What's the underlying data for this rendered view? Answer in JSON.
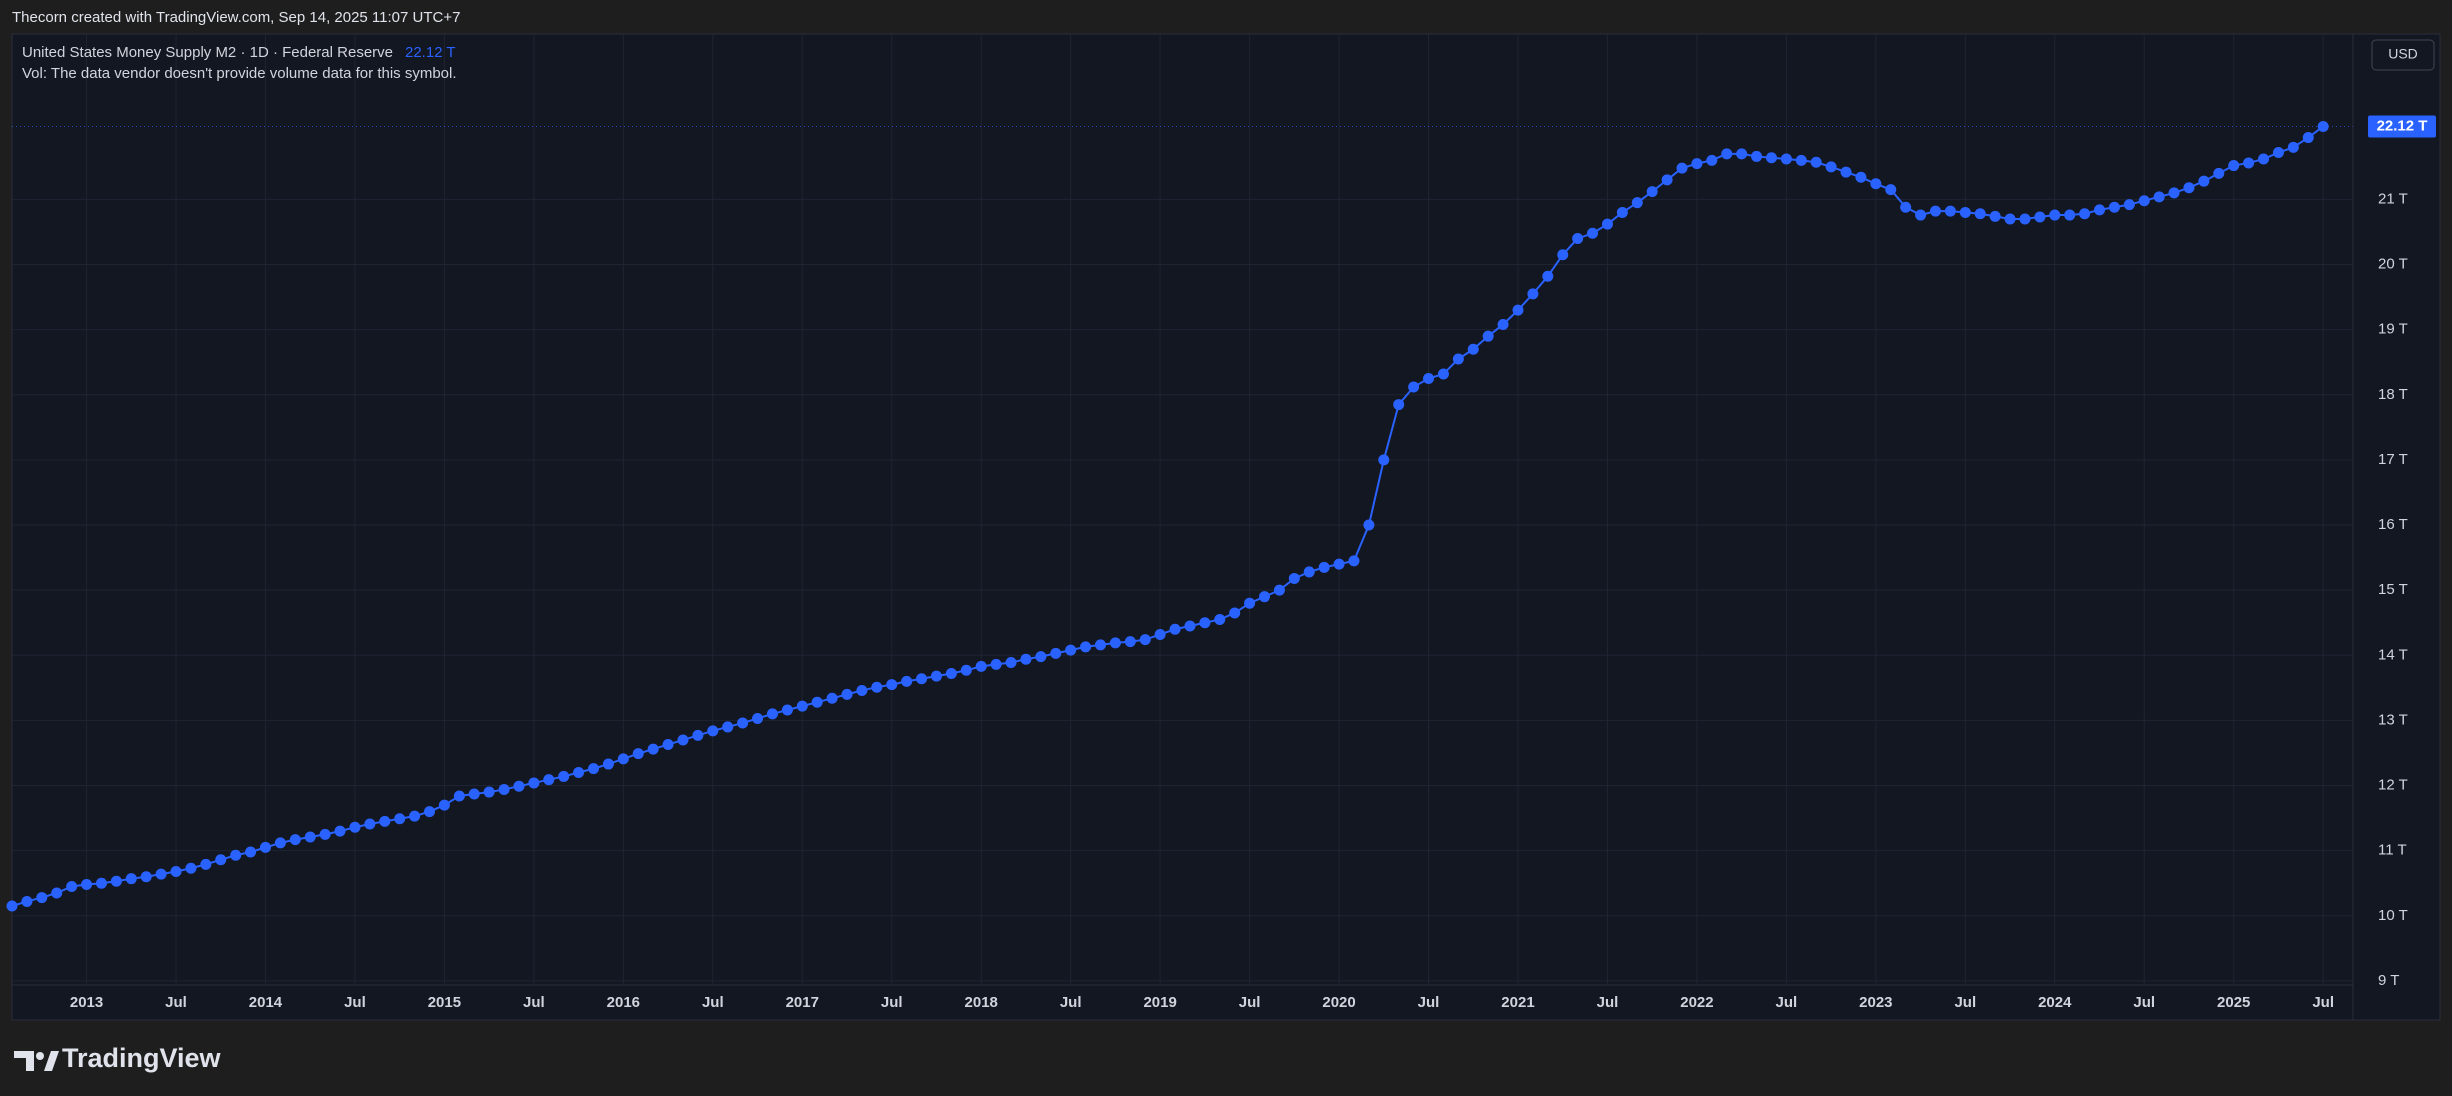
{
  "header": "Thecorn created with TradingView.com, Sep 14, 2025 11:07 UTC+7",
  "volume_note": "Vol: The data vendor doesn't provide volume data for this symbol.",
  "currency_button": "USD",
  "brand": "TradingView",
  "chart_data": {
    "type": "line",
    "last_label": "22.12 T",
    "x": [
      "2012-08",
      "2012-09",
      "2012-10",
      "2012-11",
      "2012-12",
      "2013-01",
      "2013-02",
      "2013-03",
      "2013-04",
      "2013-05",
      "2013-06",
      "2013-07",
      "2013-08",
      "2013-09",
      "2013-10",
      "2013-11",
      "2013-12",
      "2014-01",
      "2014-02",
      "2014-03",
      "2014-04",
      "2014-05",
      "2014-06",
      "2014-07",
      "2014-08",
      "2014-09",
      "2014-10",
      "2014-11",
      "2014-12",
      "2015-01",
      "2015-02",
      "2015-03",
      "2015-04",
      "2015-05",
      "2015-06",
      "2015-07",
      "2015-08",
      "2015-09",
      "2015-10",
      "2015-11",
      "2015-12",
      "2016-01",
      "2016-02",
      "2016-03",
      "2016-04",
      "2016-05",
      "2016-06",
      "2016-07",
      "2016-08",
      "2016-09",
      "2016-10",
      "2016-11",
      "2016-12",
      "2017-01",
      "2017-02",
      "2017-03",
      "2017-04",
      "2017-05",
      "2017-06",
      "2017-07",
      "2017-08",
      "2017-09",
      "2017-10",
      "2017-11",
      "2017-12",
      "2018-01",
      "2018-02",
      "2018-03",
      "2018-04",
      "2018-05",
      "2018-06",
      "2018-07",
      "2018-08",
      "2018-09",
      "2018-10",
      "2018-11",
      "2018-12",
      "2019-01",
      "2019-02",
      "2019-03",
      "2019-04",
      "2019-05",
      "2019-06",
      "2019-07",
      "2019-08",
      "2019-09",
      "2019-10",
      "2019-11",
      "2019-12",
      "2020-01",
      "2020-02",
      "2020-03",
      "2020-04",
      "2020-05",
      "2020-06",
      "2020-07",
      "2020-08",
      "2020-09",
      "2020-10",
      "2020-11",
      "2020-12",
      "2021-01",
      "2021-02",
      "2021-03",
      "2021-04",
      "2021-05",
      "2021-06",
      "2021-07",
      "2021-08",
      "2021-09",
      "2021-10",
      "2021-11",
      "2021-12",
      "2022-01",
      "2022-02",
      "2022-03",
      "2022-04",
      "2022-05",
      "2022-06",
      "2022-07",
      "2022-08",
      "2022-09",
      "2022-10",
      "2022-11",
      "2022-12",
      "2023-01",
      "2023-02",
      "2023-03",
      "2023-04",
      "2023-05",
      "2023-06",
      "2023-07",
      "2023-08",
      "2023-09",
      "2023-10",
      "2023-11",
      "2023-12",
      "2024-01",
      "2024-02",
      "2024-03",
      "2024-04",
      "2024-05",
      "2024-06",
      "2024-07",
      "2024-08",
      "2024-09",
      "2024-10",
      "2024-11",
      "2024-12",
      "2025-01",
      "2025-02",
      "2025-03",
      "2025-04",
      "2025-05",
      "2025-06",
      "2025-07"
    ],
    "series": [
      {
        "name": "United States Money Supply M2 · 1D · Federal Reserve",
        "color": "#2962ff",
        "values": [
          10.15,
          10.22,
          10.28,
          10.35,
          10.45,
          10.48,
          10.5,
          10.53,
          10.57,
          10.6,
          10.64,
          10.68,
          10.73,
          10.79,
          10.86,
          10.93,
          10.98,
          11.05,
          11.12,
          11.17,
          11.21,
          11.25,
          11.3,
          11.36,
          11.41,
          11.45,
          11.49,
          11.53,
          11.6,
          11.7,
          11.84,
          11.87,
          11.9,
          11.94,
          11.99,
          12.04,
          12.09,
          12.14,
          12.2,
          12.26,
          12.33,
          12.41,
          12.49,
          12.56,
          12.63,
          12.7,
          12.77,
          12.84,
          12.9,
          12.96,
          13.03,
          13.1,
          13.16,
          13.22,
          13.28,
          13.34,
          13.4,
          13.46,
          13.51,
          13.55,
          13.6,
          13.64,
          13.68,
          13.72,
          13.77,
          13.83,
          13.86,
          13.89,
          13.94,
          13.98,
          14.03,
          14.08,
          14.13,
          14.16,
          14.19,
          14.21,
          14.24,
          14.32,
          14.4,
          14.45,
          14.5,
          14.55,
          14.65,
          14.8,
          14.9,
          15.0,
          15.18,
          15.28,
          15.35,
          15.4,
          15.45,
          16.0,
          17.0,
          17.85,
          18.12,
          18.25,
          18.32,
          18.55,
          18.7,
          18.9,
          19.08,
          19.3,
          19.55,
          19.82,
          20.15,
          20.4,
          20.48,
          20.62,
          20.8,
          20.95,
          21.12,
          21.3,
          21.48,
          21.55,
          21.6,
          21.7,
          21.7,
          21.66,
          21.64,
          21.62,
          21.6,
          21.57,
          21.5,
          21.42,
          21.34,
          21.24,
          21.15,
          20.88,
          20.76,
          20.82,
          20.82,
          20.8,
          20.78,
          20.74,
          20.7,
          20.7,
          20.73,
          20.76,
          20.76,
          20.78,
          20.84,
          20.88,
          20.92,
          20.98,
          21.04,
          21.1,
          21.18,
          21.28,
          21.4,
          21.52,
          21.56,
          21.62,
          21.72,
          21.8,
          21.95,
          22.12
        ]
      }
    ],
    "xlim": [
      "2012-08",
      "2025-09"
    ],
    "xticks": [
      {
        "value": "2013-01",
        "label": "2013"
      },
      {
        "value": "2013-07",
        "label": "Jul"
      },
      {
        "value": "2014-01",
        "label": "2014"
      },
      {
        "value": "2014-07",
        "label": "Jul"
      },
      {
        "value": "2015-01",
        "label": "2015"
      },
      {
        "value": "2015-07",
        "label": "Jul"
      },
      {
        "value": "2016-01",
        "label": "2016"
      },
      {
        "value": "2016-07",
        "label": "Jul"
      },
      {
        "value": "2017-01",
        "label": "2017"
      },
      {
        "value": "2017-07",
        "label": "Jul"
      },
      {
        "value": "2018-01",
        "label": "2018"
      },
      {
        "value": "2018-07",
        "label": "Jul"
      },
      {
        "value": "2019-01",
        "label": "2019"
      },
      {
        "value": "2019-07",
        "label": "Jul"
      },
      {
        "value": "2020-01",
        "label": "2020"
      },
      {
        "value": "2020-07",
        "label": "Jul"
      },
      {
        "value": "2021-01",
        "label": "2021"
      },
      {
        "value": "2021-07",
        "label": "Jul"
      },
      {
        "value": "2022-01",
        "label": "2022"
      },
      {
        "value": "2022-07",
        "label": "Jul"
      },
      {
        "value": "2023-01",
        "label": "2023"
      },
      {
        "value": "2023-07",
        "label": "Jul"
      },
      {
        "value": "2024-01",
        "label": "2024"
      },
      {
        "value": "2024-07",
        "label": "Jul"
      },
      {
        "value": "2025-01",
        "label": "2025"
      },
      {
        "value": "2025-07",
        "label": "Jul"
      }
    ],
    "ylim": [
      8.4,
      23.54
    ],
    "yticks": [
      {
        "value": 9,
        "label": "9 T"
      },
      {
        "value": 10,
        "label": "10 T"
      },
      {
        "value": 11,
        "label": "11 T"
      },
      {
        "value": 12,
        "label": "12 T"
      },
      {
        "value": 13,
        "label": "13 T"
      },
      {
        "value": 14,
        "label": "14 T"
      },
      {
        "value": 15,
        "label": "15 T"
      },
      {
        "value": 16,
        "label": "16 T"
      },
      {
        "value": 17,
        "label": "17 T"
      },
      {
        "value": 18,
        "label": "18 T"
      },
      {
        "value": 19,
        "label": "19 T"
      },
      {
        "value": 20,
        "label": "20 T"
      },
      {
        "value": 21,
        "label": "21 T"
      }
    ],
    "grid": true
  }
}
